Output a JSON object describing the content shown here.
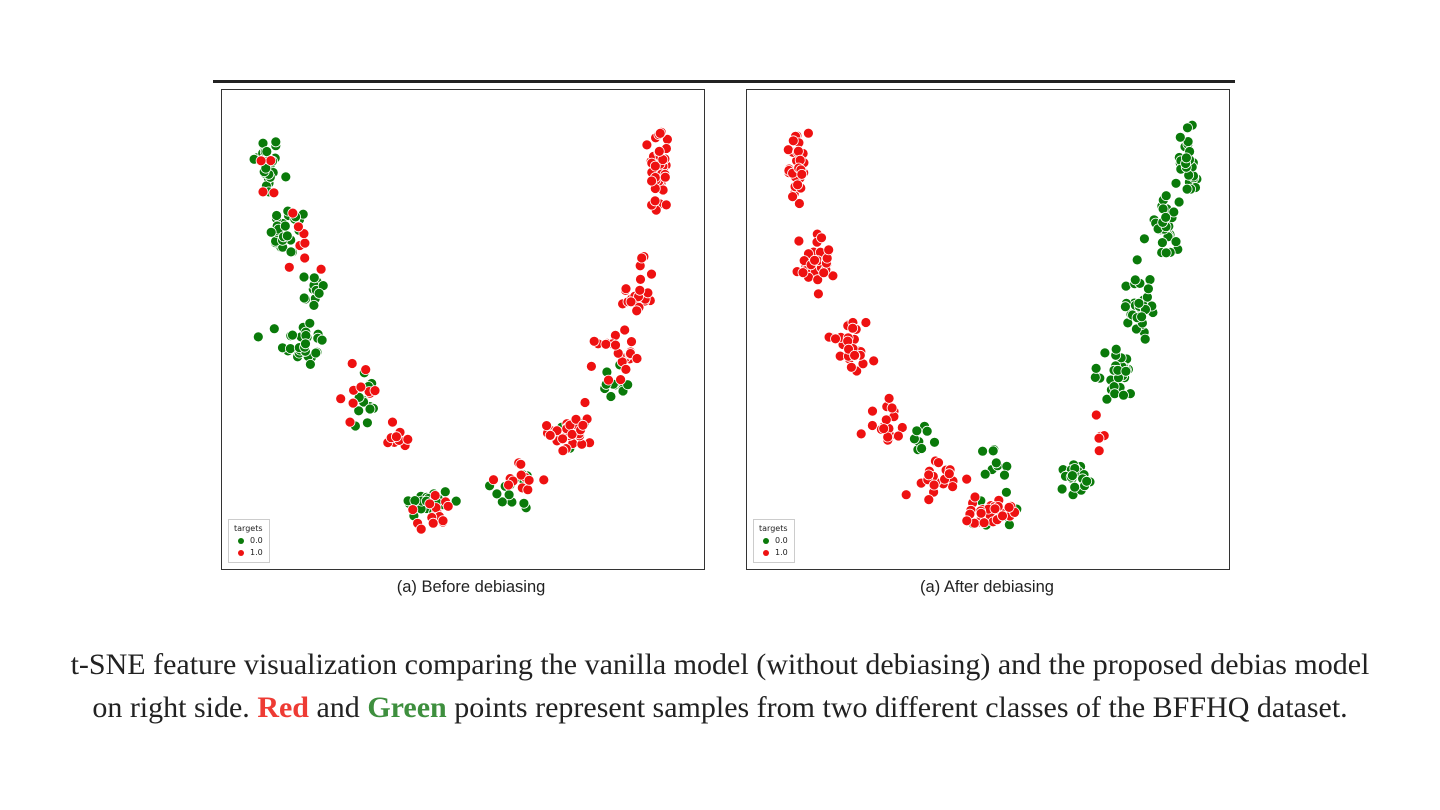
{
  "colors": {
    "class0": "#0a7a0a",
    "class1": "#ee1111",
    "caption_red": "#ee3b34",
    "caption_green": "#3e8f3e"
  },
  "chart_data": [
    {
      "type": "scatter",
      "title": "",
      "subcaption": "(a) Before debiasing",
      "legend": {
        "title": "targets",
        "placement": "bottom-left",
        "entries": [
          "0.0",
          "1.0"
        ]
      },
      "xlabel": "",
      "ylabel": "",
      "xlim": [
        0,
        100
      ],
      "ylim": [
        0,
        100
      ],
      "grid": false,
      "series": [
        {
          "name": "0.0",
          "color": "#0a7a0a",
          "clusters": [
            {
              "x": 6,
              "y": 87,
              "sx": 2.2,
              "sy": 5,
              "n": 30
            },
            {
              "x": 11,
              "y": 72,
              "sx": 3,
              "sy": 4,
              "n": 28
            },
            {
              "x": 16,
              "y": 59,
              "sx": 3,
              "sy": 3,
              "n": 12
            },
            {
              "x": 14,
              "y": 47,
              "sx": 3.5,
              "sy": 4,
              "n": 30
            },
            {
              "x": 28,
              "y": 34,
              "sx": 2.5,
              "sy": 6,
              "n": 14
            },
            {
              "x": 42,
              "y": 11,
              "sx": 4,
              "sy": 2.5,
              "n": 24
            },
            {
              "x": 62,
              "y": 14,
              "sx": 4,
              "sy": 3.5,
              "n": 14
            },
            {
              "x": 84,
              "y": 38,
              "sx": 3,
              "sy": 4,
              "n": 10
            },
            {
              "x": 75,
              "y": 26,
              "sx": 3,
              "sy": 3,
              "n": 4
            }
          ]
        },
        {
          "name": "1.0",
          "color": "#ee1111",
          "clusters": [
            {
              "x": 94,
              "y": 86,
              "sx": 1.6,
              "sy": 8,
              "n": 48
            },
            {
              "x": 89,
              "y": 58,
              "sx": 2.5,
              "sy": 5,
              "n": 22
            },
            {
              "x": 84,
              "y": 44,
              "sx": 3,
              "sy": 4,
              "n": 20
            },
            {
              "x": 74,
              "y": 27,
              "sx": 3.5,
              "sy": 4,
              "n": 32
            },
            {
              "x": 63,
              "y": 16,
              "sx": 3.5,
              "sy": 3,
              "n": 12
            },
            {
              "x": 43,
              "y": 9,
              "sx": 4.5,
              "sy": 2.5,
              "n": 14
            },
            {
              "x": 36,
              "y": 26,
              "sx": 3,
              "sy": 3,
              "n": 10
            },
            {
              "x": 27,
              "y": 36,
              "sx": 3,
              "sy": 5,
              "n": 10
            },
            {
              "x": 15,
              "y": 69,
              "sx": 3,
              "sy": 6,
              "n": 8
            },
            {
              "x": 7,
              "y": 86,
              "sx": 2,
              "sy": 5,
              "n": 4
            }
          ]
        }
      ]
    },
    {
      "type": "scatter",
      "title": "",
      "subcaption": "(a) After debiasing",
      "legend": {
        "title": "targets",
        "placement": "bottom-left",
        "entries": [
          "0.0",
          "1.0"
        ]
      },
      "xlabel": "",
      "ylabel": "",
      "xlim": [
        0,
        100
      ],
      "ylim": [
        0,
        100
      ],
      "grid": false,
      "series": [
        {
          "name": "0.0",
          "color": "#0a7a0a",
          "clusters": [
            {
              "x": 95,
              "y": 88,
              "sx": 2,
              "sy": 6,
              "n": 30
            },
            {
              "x": 89,
              "y": 72,
              "sx": 2.5,
              "sy": 5,
              "n": 28
            },
            {
              "x": 84,
              "y": 55,
              "sx": 3,
              "sy": 5,
              "n": 30
            },
            {
              "x": 79,
              "y": 40,
              "sx": 3,
              "sy": 4,
              "n": 28
            },
            {
              "x": 69,
              "y": 17,
              "sx": 3,
              "sy": 3,
              "n": 22
            },
            {
              "x": 53,
              "y": 20,
              "sx": 4,
              "sy": 4,
              "n": 10
            },
            {
              "x": 35,
              "y": 24,
              "sx": 3,
              "sy": 3,
              "n": 8
            },
            {
              "x": 52,
              "y": 7,
              "sx": 4,
              "sy": 2,
              "n": 8
            }
          ]
        },
        {
          "name": "1.0",
          "color": "#ee1111",
          "clusters": [
            {
              "x": 7,
              "y": 87,
              "sx": 2,
              "sy": 5,
              "n": 34
            },
            {
              "x": 12,
              "y": 65,
              "sx": 3,
              "sy": 4,
              "n": 34
            },
            {
              "x": 19,
              "y": 46,
              "sx": 4,
              "sy": 4,
              "n": 32
            },
            {
              "x": 27,
              "y": 29,
              "sx": 3,
              "sy": 4,
              "n": 18
            },
            {
              "x": 38,
              "y": 16,
              "sx": 4,
              "sy": 3,
              "n": 20
            },
            {
              "x": 50,
              "y": 9,
              "sx": 5,
              "sy": 2.5,
              "n": 28
            },
            {
              "x": 77,
              "y": 27,
              "sx": 3,
              "sy": 3,
              "n": 5
            }
          ]
        }
      ]
    }
  ],
  "caption": {
    "part1": "t-SNE feature visualization comparing the vanilla model (without debiasing) and the proposed debias model on right side.",
    "red_word": "Red",
    "and": "and",
    "green_word": "Green",
    "part2": "points represent samples from two different classes of the BFFHQ dataset."
  }
}
